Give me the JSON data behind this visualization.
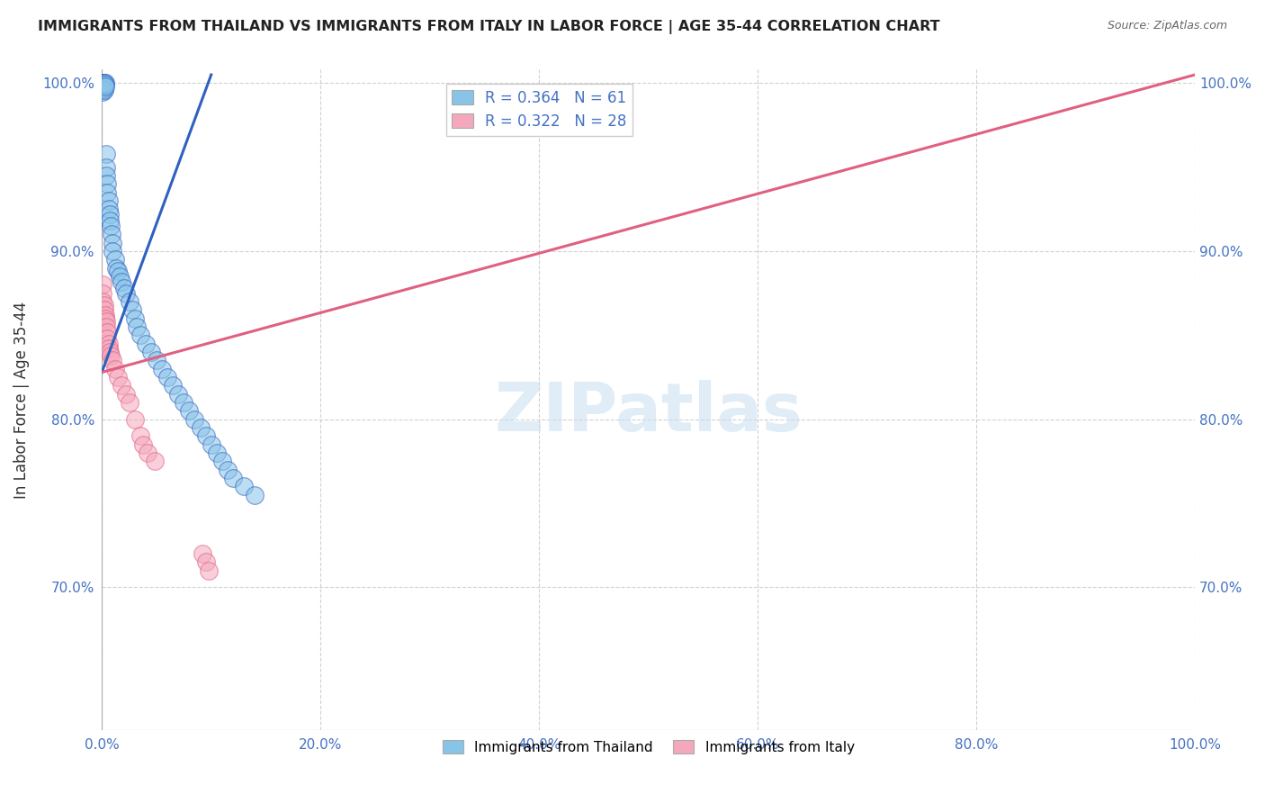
{
  "title": "IMMIGRANTS FROM THAILAND VS IMMIGRANTS FROM ITALY IN LABOR FORCE | AGE 35-44 CORRELATION CHART",
  "source": "Source: ZipAtlas.com",
  "ylabel": "In Labor Force | Age 35-44",
  "watermark": "ZIPatlas",
  "legend_blue_label": "Immigrants from Thailand",
  "legend_pink_label": "Immigrants from Italy",
  "xlim": [
    0.0,
    1.0
  ],
  "ylim": [
    0.615,
    1.008
  ],
  "xticks": [
    0.0,
    0.2,
    0.4,
    0.6,
    0.8,
    1.0
  ],
  "yticks": [
    0.7,
    0.8,
    0.9,
    1.0
  ],
  "xticklabels": [
    "0.0%",
    "20.0%",
    "40.0%",
    "60.0%",
    "80.0%",
    "100.0%"
  ],
  "yticklabels": [
    "70.0%",
    "80.0%",
    "90.0%",
    "100.0%"
  ],
  "color_blue": "#88c4e8",
  "color_pink": "#f4a8bc",
  "color_blue_line": "#3060c0",
  "color_pink_line": "#e06080",
  "color_axis_tick": "#4472c4",
  "grid_color": "#cccccc",
  "blue_line_x": [
    0.0,
    0.1
  ],
  "blue_line_y": [
    0.828,
    1.005
  ],
  "pink_line_x": [
    0.0,
    1.0
  ],
  "pink_line_y": [
    0.828,
    1.005
  ],
  "blue_x": [
    0.001,
    0.001,
    0.001,
    0.001,
    0.001,
    0.001,
    0.001,
    0.001,
    0.002,
    0.002,
    0.002,
    0.002,
    0.002,
    0.003,
    0.003,
    0.003,
    0.004,
    0.004,
    0.004,
    0.005,
    0.005,
    0.006,
    0.006,
    0.007,
    0.007,
    0.008,
    0.009,
    0.01,
    0.01,
    0.012,
    0.013,
    0.015,
    0.016,
    0.018,
    0.02,
    0.022,
    0.025,
    0.028,
    0.03,
    0.032,
    0.035,
    0.04,
    0.045,
    0.05,
    0.055,
    0.06,
    0.065,
    0.07,
    0.075,
    0.08,
    0.085,
    0.09,
    0.095,
    0.1,
    0.105,
    0.11,
    0.115,
    0.12,
    0.13,
    0.14
  ],
  "blue_y": [
    1.0,
    1.0,
    1.0,
    0.999,
    0.998,
    0.997,
    0.996,
    0.995,
    1.0,
    1.0,
    0.999,
    0.997,
    0.996,
    1.0,
    0.999,
    0.998,
    0.958,
    0.95,
    0.945,
    0.94,
    0.935,
    0.93,
    0.925,
    0.922,
    0.918,
    0.915,
    0.91,
    0.905,
    0.9,
    0.895,
    0.89,
    0.888,
    0.885,
    0.882,
    0.878,
    0.875,
    0.87,
    0.865,
    0.86,
    0.855,
    0.85,
    0.845,
    0.84,
    0.835,
    0.83,
    0.825,
    0.82,
    0.815,
    0.81,
    0.805,
    0.8,
    0.795,
    0.79,
    0.785,
    0.78,
    0.775,
    0.77,
    0.765,
    0.76,
    0.755
  ],
  "pink_x": [
    0.001,
    0.001,
    0.001,
    0.002,
    0.002,
    0.003,
    0.003,
    0.004,
    0.004,
    0.005,
    0.005,
    0.006,
    0.006,
    0.007,
    0.008,
    0.01,
    0.012,
    0.015,
    0.018,
    0.022,
    0.025,
    0.03,
    0.035,
    0.038,
    0.042,
    0.048,
    0.092,
    0.095,
    0.098
  ],
  "pink_y": [
    0.88,
    0.875,
    0.87,
    0.868,
    0.865,
    0.862,
    0.86,
    0.858,
    0.855,
    0.852,
    0.848,
    0.845,
    0.842,
    0.84,
    0.838,
    0.835,
    0.83,
    0.825,
    0.82,
    0.815,
    0.81,
    0.8,
    0.79,
    0.785,
    0.78,
    0.775,
    0.72,
    0.715,
    0.71
  ]
}
